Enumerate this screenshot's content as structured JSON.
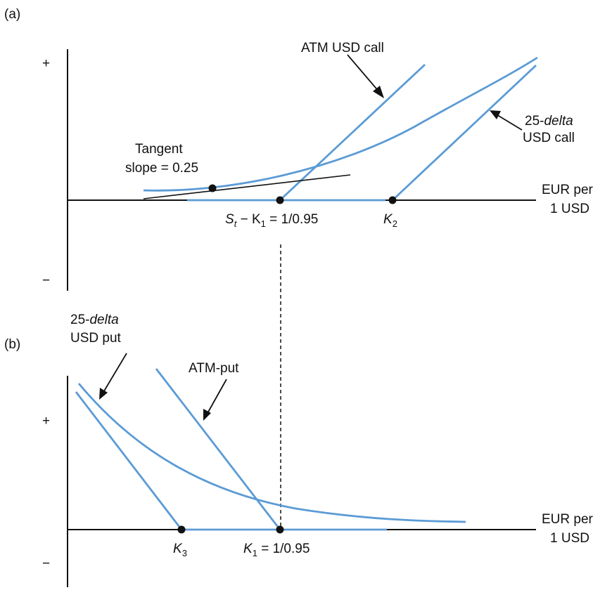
{
  "panel_a": {
    "tag": "(a)",
    "plus": "+",
    "minus": "−",
    "atm_call": "ATM USD call",
    "delta_call_1": "25-",
    "delta_call_2": "delta",
    "delta_call_3": "USD call",
    "tangent_1": "Tangent",
    "tangent_2": "slope = 0.25",
    "x_label_1": "EUR per",
    "x_label_2": "1 USD",
    "strike_s": "S",
    "strike_t": "t",
    "strike_mid": " − K",
    "strike_1": "1",
    "strike_val": " = 1/0.95",
    "k2": "K",
    "k2_sub": "2"
  },
  "panel_b": {
    "tag": "(b)",
    "plus": "+",
    "minus": "−",
    "delta_put_1": "25-",
    "delta_put_2": "delta",
    "delta_put_3": "USD put",
    "atm_put": "ATM-put",
    "x_label_1": "EUR per",
    "x_label_2": "1 USD",
    "k3": "K",
    "k3_sub": "3",
    "k1": "K",
    "k1_sub": "1",
    "k1_val": " = 1/0.95"
  },
  "colors": {
    "payoff_line": "#5b9bd5",
    "axis": "#111111"
  }
}
